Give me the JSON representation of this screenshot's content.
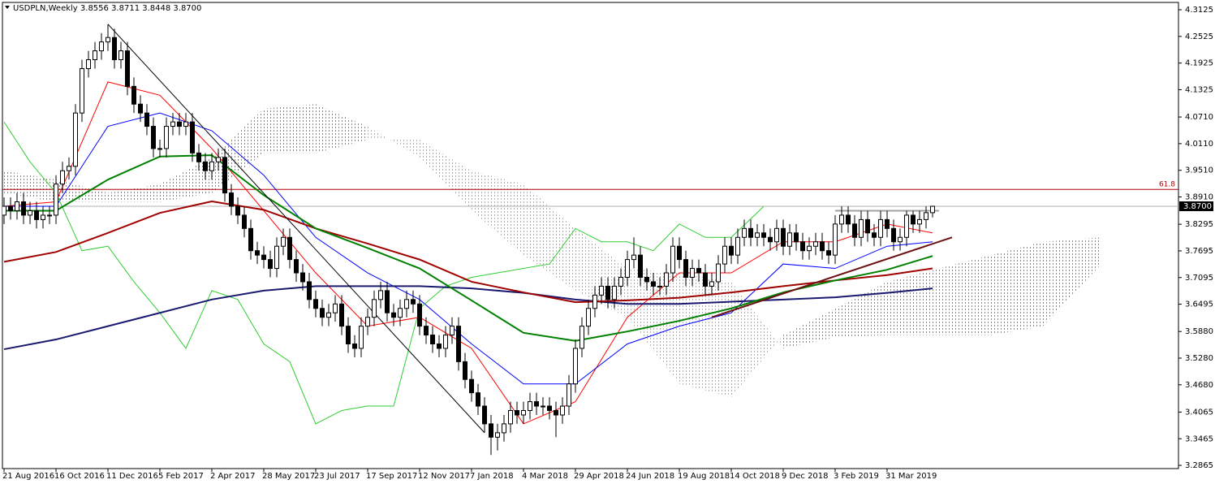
{
  "chart_data": {
    "type": "candlestick",
    "title": "USDPLN,Weekly  3.8556 3.8711 3.8448 3.8700",
    "categories": [
      "21 Aug 2016",
      null,
      null,
      null,
      null,
      null,
      null,
      null,
      "16 Oct 2016",
      null,
      null,
      null,
      null,
      null,
      null,
      null,
      "11 Dec 2016",
      null,
      null,
      null,
      null,
      null,
      null,
      null,
      "5 Feb 2017",
      null,
      null,
      null,
      null,
      null,
      null,
      null,
      "2 Apr 2017",
      null,
      null,
      null,
      null,
      null,
      null,
      null,
      "28 May 2017",
      null,
      null,
      null,
      null,
      null,
      null,
      null,
      "23 Jul 2017",
      null,
      null,
      null,
      null,
      null,
      null,
      null,
      "17 Sep 2017",
      null,
      null,
      null,
      null,
      null,
      null,
      null,
      "12 Nov 2017",
      null,
      null,
      null,
      null,
      null,
      null,
      null,
      "7 Jan 2018",
      null,
      null,
      null,
      null,
      null,
      null,
      null,
      "4 Mar 2018",
      null,
      null,
      null,
      null,
      null,
      null,
      null,
      "29 Apr 2018",
      null,
      null,
      null,
      null,
      null,
      null,
      null,
      "24 Jun 2018",
      null,
      null,
      null,
      null,
      null,
      null,
      null,
      "19 Aug 2018",
      null,
      null,
      null,
      null,
      null,
      null,
      null,
      "14 Oct 2018",
      null,
      null,
      null,
      null,
      null,
      null,
      null,
      "9 Dec 2018",
      null,
      null,
      null,
      null,
      null,
      null,
      null,
      "3 Feb 2019",
      null,
      null,
      null,
      null,
      null,
      null,
      null,
      "31 Mar 2019",
      null,
      null,
      null,
      null,
      null,
      null,
      null
    ],
    "open": [
      3.85,
      3.87,
      3.86,
      3.88,
      3.85,
      3.86,
      3.84,
      3.85,
      3.85,
      3.92,
      3.95,
      3.96,
      4.08,
      4.18,
      4.2,
      4.22,
      4.24,
      4.25,
      4.2,
      4.22,
      4.14,
      4.1,
      4.08,
      4.05,
      4.0,
      4.0,
      4.05,
      4.06,
      4.05,
      4.06,
      3.99,
      3.97,
      3.95,
      3.97,
      3.98,
      3.9,
      3.87,
      3.85,
      3.82,
      3.77,
      3.76,
      3.75,
      3.73,
      3.78,
      3.8,
      3.75,
      3.72,
      3.7,
      3.66,
      3.64,
      3.62,
      3.63,
      3.65,
      3.6,
      3.56,
      3.55,
      3.6,
      3.62,
      3.66,
      3.68,
      3.63,
      3.62,
      3.64,
      3.66,
      3.65,
      3.6,
      3.58,
      3.56,
      3.55,
      3.58,
      3.6,
      3.52,
      3.48,
      3.45,
      3.42,
      3.38,
      3.35,
      3.36,
      3.38,
      3.41,
      3.4,
      3.41,
      3.43,
      3.42,
      3.42,
      3.41,
      3.4,
      3.42,
      3.47,
      3.55,
      3.6,
      3.64,
      3.67,
      3.69,
      3.66,
      3.69,
      3.71,
      3.75,
      3.76,
      3.71,
      3.7,
      3.69,
      3.69,
      3.72,
      3.78,
      3.75,
      3.71,
      3.73,
      3.72,
      3.69,
      3.7,
      3.74,
      3.78,
      3.76,
      3.8,
      3.82,
      3.8,
      3.81,
      3.8,
      3.79,
      3.82,
      3.78,
      3.81,
      3.79,
      3.77,
      3.78,
      3.79,
      3.77,
      3.76,
      3.83,
      3.85,
      3.83,
      3.8,
      3.84,
      3.81,
      3.8,
      3.84,
      3.82,
      3.79,
      3.8,
      3.85,
      3.83,
      3.84,
      3.8556
    ],
    "high": [
      3.89,
      3.89,
      3.9,
      3.9,
      3.88,
      3.88,
      3.87,
      3.87,
      3.94,
      3.97,
      3.98,
      4.1,
      4.2,
      4.22,
      4.24,
      4.26,
      4.28,
      4.27,
      4.24,
      4.24,
      4.16,
      4.12,
      4.1,
      4.07,
      4.02,
      4.07,
      4.08,
      4.08,
      4.08,
      4.08,
      4.01,
      3.99,
      3.99,
      4.0,
      4.0,
      3.92,
      3.89,
      3.87,
      3.84,
      3.79,
      3.78,
      3.77,
      3.8,
      3.82,
      3.82,
      3.77,
      3.74,
      3.72,
      3.68,
      3.66,
      3.65,
      3.67,
      3.67,
      3.62,
      3.58,
      3.62,
      3.64,
      3.68,
      3.7,
      3.7,
      3.65,
      3.66,
      3.68,
      3.68,
      3.67,
      3.62,
      3.6,
      3.58,
      3.6,
      3.62,
      3.62,
      3.54,
      3.5,
      3.47,
      3.44,
      3.4,
      3.38,
      3.4,
      3.43,
      3.43,
      3.43,
      3.45,
      3.45,
      3.44,
      3.44,
      3.43,
      3.44,
      3.49,
      3.57,
      3.62,
      3.66,
      3.69,
      3.71,
      3.71,
      3.71,
      3.73,
      3.77,
      3.8,
      3.78,
      3.73,
      3.72,
      3.71,
      3.74,
      3.8,
      3.8,
      3.77,
      3.75,
      3.75,
      3.74,
      3.72,
      3.76,
      3.8,
      3.8,
      3.82,
      3.84,
      3.84,
      3.83,
      3.83,
      3.82,
      3.84,
      3.84,
      3.83,
      3.83,
      3.81,
      3.8,
      3.81,
      3.81,
      3.79,
      3.85,
      3.87,
      3.87,
      3.85,
      3.86,
      3.86,
      3.83,
      3.86,
      3.86,
      3.84,
      3.82,
      3.86,
      3.86,
      3.86,
      3.87,
      3.8711
    ],
    "low": [
      3.83,
      3.84,
      3.84,
      3.83,
      3.83,
      3.82,
      3.82,
      3.83,
      3.83,
      3.9,
      3.93,
      3.94,
      4.06,
      4.16,
      4.18,
      4.2,
      4.22,
      4.18,
      4.18,
      4.12,
      4.08,
      4.06,
      4.03,
      3.98,
      3.98,
      3.98,
      4.03,
      4.03,
      4.03,
      3.97,
      3.95,
      3.93,
      3.93,
      3.95,
      3.88,
      3.85,
      3.83,
      3.8,
      3.75,
      3.74,
      3.73,
      3.71,
      3.71,
      3.76,
      3.73,
      3.7,
      3.68,
      3.64,
      3.62,
      3.6,
      3.6,
      3.61,
      3.58,
      3.54,
      3.53,
      3.53,
      3.58,
      3.6,
      3.64,
      3.61,
      3.6,
      3.6,
      3.62,
      3.63,
      3.58,
      3.56,
      3.54,
      3.53,
      3.53,
      3.56,
      3.5,
      3.46,
      3.43,
      3.4,
      3.36,
      3.31,
      3.32,
      3.34,
      3.36,
      3.38,
      3.38,
      3.39,
      3.4,
      3.4,
      3.39,
      3.35,
      3.38,
      3.4,
      3.45,
      3.53,
      3.58,
      3.62,
      3.65,
      3.64,
      3.64,
      3.67,
      3.69,
      3.73,
      3.69,
      3.68,
      3.67,
      3.67,
      3.67,
      3.7,
      3.73,
      3.69,
      3.69,
      3.7,
      3.67,
      3.67,
      3.68,
      3.72,
      3.74,
      3.74,
      3.78,
      3.78,
      3.78,
      3.78,
      3.77,
      3.77,
      3.76,
      3.76,
      3.77,
      3.75,
      3.75,
      3.76,
      3.75,
      3.74,
      3.74,
      3.81,
      3.81,
      3.78,
      3.78,
      3.79,
      3.78,
      3.78,
      3.8,
      3.77,
      3.77,
      3.78,
      3.81,
      3.81,
      3.82,
      3.8448
    ],
    "close": [
      3.87,
      3.86,
      3.88,
      3.85,
      3.86,
      3.84,
      3.85,
      3.85,
      3.92,
      3.95,
      3.96,
      4.08,
      4.18,
      4.2,
      4.22,
      4.24,
      4.25,
      4.2,
      4.22,
      4.14,
      4.1,
      4.08,
      4.05,
      4.0,
      4.0,
      4.05,
      4.06,
      4.05,
      4.06,
      3.99,
      3.97,
      3.95,
      3.97,
      3.98,
      3.9,
      3.87,
      3.85,
      3.82,
      3.77,
      3.76,
      3.75,
      3.73,
      3.78,
      3.8,
      3.75,
      3.72,
      3.7,
      3.66,
      3.64,
      3.62,
      3.63,
      3.65,
      3.6,
      3.56,
      3.55,
      3.6,
      3.62,
      3.66,
      3.68,
      3.63,
      3.62,
      3.64,
      3.66,
      3.65,
      3.6,
      3.58,
      3.56,
      3.55,
      3.58,
      3.6,
      3.52,
      3.48,
      3.45,
      3.42,
      3.38,
      3.35,
      3.36,
      3.38,
      3.41,
      3.4,
      3.41,
      3.43,
      3.42,
      3.42,
      3.41,
      3.4,
      3.42,
      3.47,
      3.55,
      3.6,
      3.64,
      3.67,
      3.69,
      3.66,
      3.69,
      3.71,
      3.75,
      3.76,
      3.71,
      3.7,
      3.69,
      3.69,
      3.72,
      3.78,
      3.75,
      3.71,
      3.73,
      3.72,
      3.69,
      3.7,
      3.74,
      3.78,
      3.76,
      3.8,
      3.82,
      3.8,
      3.81,
      3.8,
      3.79,
      3.82,
      3.78,
      3.81,
      3.79,
      3.77,
      3.78,
      3.79,
      3.77,
      3.76,
      3.83,
      3.85,
      3.83,
      3.8,
      3.84,
      3.81,
      3.8,
      3.84,
      3.82,
      3.79,
      3.8,
      3.85,
      3.83,
      3.84,
      3.8556,
      3.87
    ],
    "bull_color": "#ffffff",
    "bear_color": "#000000",
    "ylim": [
      3.2793,
      4.329
    ],
    "yticks": [
      4.3125,
      4.2525,
      4.1925,
      4.1325,
      {
        "value": 4.071,
        "label": "4.0710"
      },
      {
        "value": 4.011,
        "label": "4.0110"
      },
      {
        "value": 3.951,
        "label": "3.9510"
      },
      {
        "value": 3.891,
        "label": "3.8910"
      },
      3.8295,
      3.7695,
      3.7095,
      3.6495,
      {
        "value": 3.588,
        "label": "3.5880"
      },
      {
        "value": 3.528,
        "label": "3.5280"
      },
      {
        "value": 3.468,
        "label": "3.4680"
      },
      3.4065,
      3.3465,
      3.2865
    ],
    "grid": false,
    "cloud": {
      "x": [
        0,
        8,
        16,
        24,
        32,
        40,
        48,
        56,
        64,
        72,
        80,
        88,
        96,
        104,
        112,
        120,
        128,
        136,
        144,
        152,
        160,
        169
      ],
      "span_a": [
        3.95,
        3.93,
        3.9,
        3.92,
        3.98,
        4.09,
        4.1,
        4.05,
        3.98,
        3.86,
        3.76,
        3.68,
        3.62,
        3.47,
        3.44,
        3.58,
        3.64,
        3.7,
        3.73,
        3.76,
        3.79,
        3.8
      ],
      "span_b": [
        3.9,
        3.88,
        3.88,
        3.88,
        3.9,
        3.99,
        3.99,
        4.02,
        4.02,
        3.95,
        3.92,
        3.82,
        3.73,
        3.72,
        3.7,
        3.55,
        3.575,
        3.58,
        3.58,
        3.58,
        3.6,
        3.74
      ],
      "up_color": "#e07020",
      "down_color": "#c8a0c8"
    },
    "moving_averages": [
      {
        "color": "#191970",
        "x": [
          0,
          8,
          16,
          24,
          32,
          40,
          48,
          56,
          64,
          72,
          80,
          88,
          96,
          104,
          112,
          120,
          128,
          136,
          143
        ],
        "values": [
          3.548,
          3.57,
          3.6,
          3.63,
          3.66,
          3.68,
          3.69,
          3.69,
          3.69,
          3.685,
          3.675,
          3.66,
          3.65,
          3.65,
          3.655,
          3.66,
          3.665,
          3.675,
          3.685
        ]
      },
      {
        "color": "#a00000",
        "x": [
          0,
          8,
          16,
          24,
          32,
          40,
          48,
          56,
          64,
          72,
          80,
          88,
          96,
          104,
          112,
          120,
          128,
          136,
          143
        ],
        "values": [
          3.745,
          3.767,
          3.81,
          3.855,
          3.881,
          3.862,
          3.82,
          3.786,
          3.75,
          3.7,
          3.676,
          3.654,
          3.658,
          3.664,
          3.676,
          3.69,
          3.703,
          3.715,
          3.73
        ]
      },
      {
        "color": "#008000",
        "x": [
          0,
          8,
          16,
          24,
          32,
          40,
          48,
          56,
          64,
          72,
          80,
          88,
          96,
          104,
          112,
          120,
          128,
          136,
          143
        ],
        "values": [
          3.86,
          3.86,
          3.93,
          3.982,
          3.985,
          3.895,
          3.82,
          3.776,
          3.73,
          3.658,
          3.585,
          3.567,
          3.588,
          3.612,
          3.64,
          3.676,
          3.703,
          3.727,
          3.758
        ]
      }
    ],
    "ichimoku": [
      {
        "color": "#ff0000",
        "x": [
          0,
          8,
          16,
          24,
          32,
          40,
          48,
          56,
          64,
          72,
          80,
          88,
          96,
          104,
          112,
          120,
          128,
          136,
          143
        ],
        "values": [
          3.87,
          3.88,
          4.15,
          4.12,
          4.0,
          3.86,
          3.72,
          3.6,
          3.62,
          3.55,
          3.38,
          3.43,
          3.62,
          3.72,
          3.72,
          3.79,
          3.79,
          3.83,
          3.81
        ]
      },
      {
        "color": "#0000ff",
        "x": [
          0,
          8,
          16,
          24,
          32,
          40,
          48,
          56,
          64,
          72,
          80,
          88,
          96,
          104,
          112,
          120,
          128,
          136,
          143
        ],
        "values": [
          3.87,
          3.87,
          4.05,
          4.08,
          4.04,
          3.94,
          3.8,
          3.72,
          3.66,
          3.56,
          3.47,
          3.47,
          3.56,
          3.6,
          3.63,
          3.74,
          3.73,
          3.78,
          3.79
        ]
      },
      {
        "color": "#32cd32",
        "x": [
          0,
          4,
          8,
          12,
          16,
          20,
          24,
          28,
          32,
          36,
          40,
          44,
          48,
          52,
          56,
          60,
          64,
          68,
          72,
          76,
          80,
          84,
          88,
          92,
          96,
          100,
          104,
          108,
          112,
          116,
          117
        ],
        "values": [
          4.06,
          3.97,
          3.9,
          3.77,
          3.78,
          3.7,
          3.63,
          3.55,
          3.68,
          3.66,
          3.56,
          3.52,
          3.38,
          3.41,
          3.42,
          3.42,
          3.64,
          3.69,
          3.71,
          3.72,
          3.73,
          3.74,
          3.82,
          3.79,
          3.79,
          3.77,
          3.83,
          3.8,
          3.8,
          3.8556,
          3.87
        ]
      }
    ],
    "trendlines": [
      {
        "color": "#000000",
        "x": [
          16,
          74
        ],
        "y": [
          4.28,
          3.36
        ]
      },
      {
        "color": "#6b1010",
        "x": [
          109,
          146
        ],
        "y": [
          3.62,
          3.8
        ]
      },
      {
        "color": "#a0a0a0",
        "x": [
          128,
          144
        ],
        "y": [
          3.86,
          3.86
        ]
      }
    ],
    "fib": {
      "value": 3.908,
      "label": "61.8",
      "color": "#b00000"
    },
    "price_tag": {
      "value": 3.87,
      "label": "3.8700"
    }
  }
}
